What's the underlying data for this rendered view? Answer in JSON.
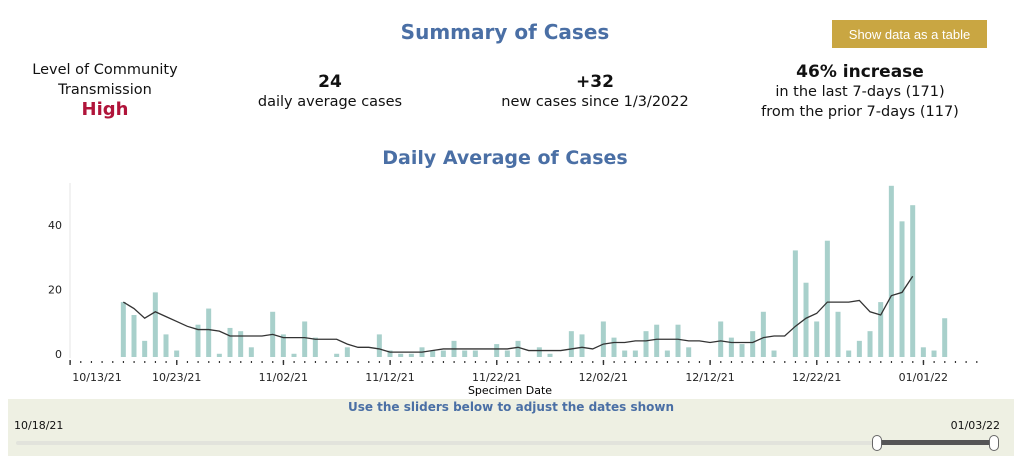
{
  "header": {
    "title": "Summary of Cases",
    "table_button": "Show data as a table"
  },
  "stats": {
    "transmission_label": "Level of Community Transmission",
    "transmission_value": "High",
    "daily_avg_value": "24",
    "daily_avg_label": "daily average cases",
    "new_cases_value": "+32",
    "new_cases_label": "new cases since 1/3/2022",
    "change_value": "46% increase",
    "change_line1": "in the last 7-days (171)",
    "change_line2": "from the prior 7-days (117)"
  },
  "colors": {
    "bar": "#a8d0cb",
    "line": "#333333",
    "title": "#4a6fa5",
    "high": "#b0143a",
    "button": "#c9a642"
  },
  "chart_data": {
    "type": "bar",
    "title": "Daily Average of Cases",
    "xlabel": "Specimen Date",
    "ylabel": "",
    "ylim": [
      0,
      55
    ],
    "y_ticks": [
      0,
      20,
      40
    ],
    "x_tick_labels": [
      "10/13/21",
      "10/23/21",
      "11/02/21",
      "11/12/21",
      "11/22/21",
      "12/02/21",
      "12/12/21",
      "12/22/21",
      "01/01/22"
    ],
    "x_start": "2021-10-13",
    "x_end": "2022-01-06",
    "bars": {
      "start": "2021-10-18",
      "values": [
        17,
        13,
        5,
        20,
        7,
        2,
        0,
        10,
        15,
        1,
        9,
        8,
        3,
        0,
        14,
        7,
        1,
        11,
        6,
        0,
        1,
        3,
        0,
        0,
        7,
        2,
        1,
        1,
        3,
        2,
        2,
        5,
        2,
        2,
        0,
        4,
        2,
        5,
        0,
        3,
        1,
        0,
        8,
        7,
        0,
        11,
        6,
        2,
        2,
        8,
        10,
        2,
        10,
        3,
        0,
        0,
        11,
        6,
        4,
        8,
        14,
        2,
        0,
        33,
        23,
        11,
        36,
        14,
        2,
        5,
        8,
        17,
        53,
        42,
        47,
        3,
        2,
        12
      ]
    },
    "line": {
      "start": "2021-10-18",
      "values": [
        17,
        15,
        12,
        14,
        12.5,
        11,
        9.5,
        8.5,
        8.5,
        8,
        6.5,
        6.5,
        6.5,
        6.5,
        7,
        6,
        6,
        6,
        5.5,
        5.5,
        5.5,
        4,
        3,
        3,
        2.5,
        1.5,
        1.5,
        1.5,
        1.5,
        2,
        2.5,
        2.5,
        2.5,
        2.5,
        2.5,
        2.5,
        2.5,
        3,
        2,
        2,
        2,
        2,
        2.5,
        3,
        2.5,
        4,
        4.5,
        4.5,
        5,
        5,
        5.5,
        5.5,
        5.5,
        5,
        5,
        4.5,
        5,
        4.5,
        4.5,
        4.5,
        6,
        6.5,
        6.5,
        9.5,
        12,
        13.5,
        17,
        17,
        17,
        17.5,
        14,
        13,
        19,
        20,
        25
      ]
    },
    "grid": false
  },
  "slider": {
    "hint": "Use the sliders below to adjust the dates shown",
    "start_label": "10/18/21",
    "end_label": "01/03/22",
    "selection": [
      0.88,
      1.0
    ]
  }
}
